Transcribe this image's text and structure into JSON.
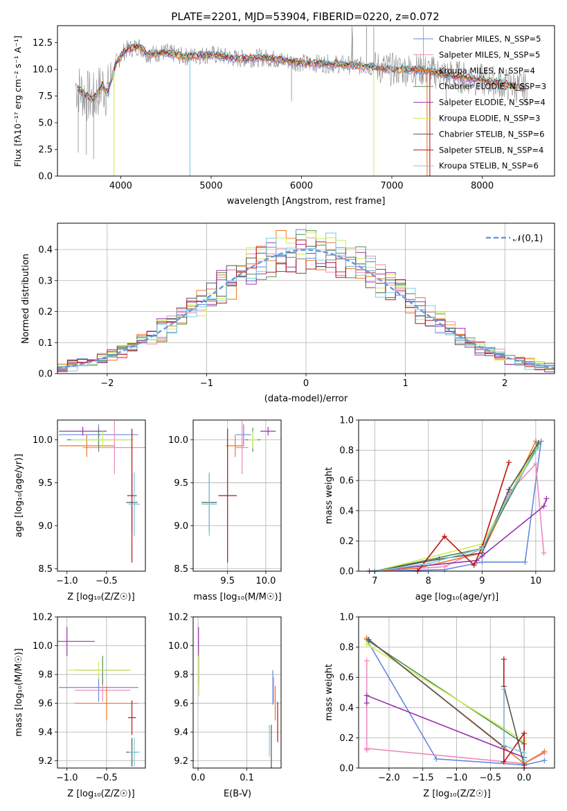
{
  "colors": {
    "chab_miles": "#6688dd",
    "salp_miles": "#ee88bb",
    "krou_miles": "#ee7722",
    "chab_elodie": "#558855",
    "salp_elodie": "#9933aa",
    "krou_elodie": "#ccee55",
    "chab_stelib": "#555555",
    "salp_stelib": "#bb1111",
    "krou_stelib": "#77ccdd",
    "data": "#888888",
    "normal": "#6699dd"
  },
  "chart_data": [
    {
      "type": "line",
      "title": "PLATE=2201, MJD=53904, FIBERID=0220, z=0.072",
      "xlabel": "wavelength [Angstrom, rest frame]",
      "ylabel": "Flux [fλ10⁻¹⁷ erg cm⁻² s⁻¹ A⁻¹]",
      "xlim": [
        3300,
        8800
      ],
      "ylim": [
        0,
        14.1
      ],
      "xticks": [
        4000,
        5000,
        6000,
        7000,
        8000
      ],
      "yticks": [
        0.0,
        2.5,
        5.0,
        7.5,
        10.0,
        12.5
      ],
      "grid": false,
      "legend_position": "top-right",
      "legend": [
        "Chabrier MILES, N_SSP=5",
        "Salpeter MILES, N_SSP=5",
        "Kroupa MILES, N_SSP=4",
        "Chabrier ELODIE, N_SSP=3",
        "Salpeter ELODIE, N_SSP=4",
        "Kroupa ELODIE, N_SSP=3",
        "Chabrier STELIB, N_SSP=6",
        "Salpeter STELIB, N_SSP=4",
        "Kroupa STELIB, N_SSP=6"
      ],
      "continuum": {
        "x": [
          3500,
          3600,
          3700,
          3800,
          3850,
          3950,
          4050,
          4200,
          4300,
          4500,
          4700,
          5000,
          5300,
          5600,
          6000,
          6400,
          6700,
          7000,
          7300,
          7600,
          7900,
          8200,
          8500
        ],
        "y": [
          8.5,
          7.6,
          7.2,
          8.5,
          7.8,
          10.6,
          11.8,
          12.2,
          11.4,
          11.6,
          11.2,
          11.4,
          11.0,
          11.1,
          10.6,
          10.5,
          10.3,
          10.0,
          10.0,
          9.5,
          9.1,
          8.7,
          8.2
        ]
      }
    },
    {
      "type": "histogram",
      "xlabel": "(data-model)/error",
      "ylabel": "Normed distribution",
      "xlim": [
        -2.5,
        2.5
      ],
      "ylim": [
        0,
        0.485
      ],
      "xticks": [
        -2,
        -1,
        0,
        1,
        2
      ],
      "yticks": [
        0.0,
        0.1,
        0.2,
        0.3,
        0.4
      ],
      "grid": true,
      "legend_position": "top-right",
      "legend": [
        "𝒩(0,1)"
      ],
      "bin_width": 0.1
    },
    {
      "type": "scatter",
      "xlabel": "Z [log₁₀(Z/Z☉)]",
      "ylabel": "age  [log₁₀(age/yr)]",
      "xlim": [
        -1.12,
        -0.01
      ],
      "ylim": [
        8.47,
        10.23
      ],
      "xticks": [
        -1.0,
        -0.5
      ],
      "yticks": [
        8.5,
        9.0,
        9.5,
        10.0
      ],
      "points": [
        {
          "c": "chab_miles",
          "x": -0.6,
          "xerr": 0.5,
          "y": 10.06,
          "yerr": 0.12
        },
        {
          "c": "salp_miles",
          "x": -0.4,
          "xerr": 0.4,
          "y": 9.91,
          "yerr": 0.31
        },
        {
          "c": "krou_miles",
          "x": -0.75,
          "xerr": 0.35,
          "y": 9.93,
          "yerr": 0.13
        },
        {
          "c": "chab_elodie",
          "x": -0.6,
          "xerr": 0.4,
          "y": 10.0,
          "yerr": 0.14
        },
        {
          "c": "salp_elodie",
          "x": -0.8,
          "xerr": 0.3,
          "y": 10.1,
          "yerr": 0.05
        },
        {
          "c": "krou_elodie",
          "x": -0.55,
          "xerr": 0.4,
          "y": 10.0,
          "yerr": 0.1
        },
        {
          "c": "chab_stelib",
          "x": -0.18,
          "xerr": 0.07,
          "y": 9.27,
          "yerr": 0.34
        },
        {
          "c": "salp_stelib",
          "x": -0.18,
          "xerr": 0.06,
          "y": 9.35,
          "yerr": 0.78
        },
        {
          "c": "krou_stelib",
          "x": -0.15,
          "xerr": 0.07,
          "y": 9.25,
          "yerr": 0.37
        }
      ]
    },
    {
      "type": "scatter",
      "xlabel": "mass [log₁₀(M/M☉)]",
      "ylabel": "",
      "xlim": [
        9.05,
        10.2
      ],
      "ylim": [
        8.47,
        10.23
      ],
      "xticks": [
        9.5,
        10.0
      ],
      "yticks": [
        8.5,
        9.0,
        9.5,
        10.0
      ],
      "points": [
        {
          "c": "chab_miles",
          "x": 9.71,
          "xerr": 0.1,
          "y": 10.06,
          "yerr": 0.12
        },
        {
          "c": "salp_miles",
          "x": 9.69,
          "xerr": 0.08,
          "y": 9.91,
          "yerr": 0.31
        },
        {
          "c": "krou_miles",
          "x": 9.6,
          "xerr": 0.12,
          "y": 9.93,
          "yerr": 0.13
        },
        {
          "c": "chab_elodie",
          "x": 9.83,
          "xerr": 0.1,
          "y": 10.0,
          "yerr": 0.14
        },
        {
          "c": "salp_elodie",
          "x": 10.03,
          "xerr": 0.1,
          "y": 10.1,
          "yerr": 0.05
        },
        {
          "c": "krou_elodie",
          "x": 9.83,
          "xerr": 0.06,
          "y": 10.0,
          "yerr": 0.1
        },
        {
          "c": "chab_stelib",
          "x": 9.26,
          "xerr": 0.1,
          "y": 9.27,
          "yerr": 0.34
        },
        {
          "c": "salp_stelib",
          "x": 9.5,
          "xerr": 0.12,
          "y": 9.35,
          "yerr": 0.78
        },
        {
          "c": "krou_stelib",
          "x": 9.26,
          "xerr": 0.1,
          "y": 9.25,
          "yerr": 0.37
        }
      ]
    },
    {
      "type": "line",
      "xlabel": "age  [log₁₀(age/yr)]",
      "ylabel": "mass weight",
      "xlim": [
        6.7,
        10.35
      ],
      "ylim": [
        0,
        1.0
      ],
      "xticks": [
        7,
        8,
        9,
        10
      ],
      "yticks": [
        0.0,
        0.2,
        0.4,
        0.6,
        0.8,
        1.0
      ],
      "grid": true,
      "series": [
        {
          "c": "chab_miles",
          "x": [
            7.0,
            8.3,
            9.0,
            9.8,
            10.1
          ],
          "y": [
            0.0,
            0.01,
            0.06,
            0.06,
            0.86
          ]
        },
        {
          "c": "salp_miles",
          "x": [
            7.0,
            8.3,
            9.0,
            9.5,
            10.0,
            10.15
          ],
          "y": [
            0.0,
            0.03,
            0.15,
            0.52,
            0.71,
            0.12
          ]
        },
        {
          "c": "krou_miles",
          "x": [
            6.9,
            7.8,
            9.0,
            10.0
          ],
          "y": [
            0.0,
            0.02,
            0.12,
            0.86
          ]
        },
        {
          "c": "chab_elodie",
          "x": [
            7.0,
            9.0,
            10.05
          ],
          "y": [
            0.0,
            0.15,
            0.84
          ]
        },
        {
          "c": "salp_elodie",
          "x": [
            6.9,
            8.9,
            9.0,
            10.15,
            10.2
          ],
          "y": [
            0.0,
            0.07,
            0.1,
            0.43,
            0.48
          ]
        },
        {
          "c": "krou_elodie",
          "x": [
            7.0,
            9.0,
            10.0
          ],
          "y": [
            0.0,
            0.18,
            0.82
          ]
        },
        {
          "c": "chab_stelib",
          "x": [
            7.0,
            8.2,
            9.0,
            9.5,
            10.05
          ],
          "y": [
            0.0,
            0.08,
            0.12,
            0.54,
            0.85
          ]
        },
        {
          "c": "salp_stelib",
          "x": [
            7.8,
            8.3,
            8.85,
            9.0,
            9.5
          ],
          "y": [
            0.0,
            0.23,
            0.04,
            0.16,
            0.72
          ]
        },
        {
          "c": "krou_stelib",
          "x": [
            7.0,
            8.0,
            9.0,
            9.5,
            10.05
          ],
          "y": [
            0.0,
            0.05,
            0.15,
            0.5,
            0.82
          ]
        }
      ]
    },
    {
      "type": "scatter",
      "xlabel": "Z [log₁₀(Z/Z☉)]",
      "ylabel": "mass [log₁₀(M/M☉)]",
      "xlim": [
        -1.12,
        -0.01
      ],
      "ylim": [
        9.15,
        10.2
      ],
      "xticks": [
        -1.0,
        -0.5
      ],
      "yticks": [
        9.2,
        9.4,
        9.6,
        9.8,
        10.0,
        10.2
      ],
      "points": [
        {
          "c": "chab_miles",
          "x": -0.6,
          "xerr": 0.5,
          "y": 9.71,
          "yerr": 0.1
        },
        {
          "c": "salp_miles",
          "x": -0.55,
          "xerr": 0.35,
          "y": 9.69,
          "yerr": 0.08
        },
        {
          "c": "krou_miles",
          "x": -0.5,
          "xerr": 0.4,
          "y": 9.6,
          "yerr": 0.12
        },
        {
          "c": "chab_elodie",
          "x": -0.55,
          "xerr": 0.35,
          "y": 9.83,
          "yerr": 0.1
        },
        {
          "c": "salp_elodie",
          "x": -1.0,
          "xerr": 0.35,
          "y": 10.03,
          "yerr": 0.1
        },
        {
          "c": "krou_elodie",
          "x": -0.6,
          "xerr": 0.4,
          "y": 9.83,
          "yerr": 0.06
        },
        {
          "c": "chab_stelib",
          "x": -0.18,
          "xerr": 0.07,
          "y": 9.26,
          "yerr": 0.1
        },
        {
          "c": "salp_stelib",
          "x": -0.18,
          "xerr": 0.05,
          "y": 9.5,
          "yerr": 0.12
        },
        {
          "c": "krou_stelib",
          "x": -0.15,
          "xerr": 0.07,
          "y": 9.26,
          "yerr": 0.1
        }
      ]
    },
    {
      "type": "scatter",
      "xlabel": "E(B-V)",
      "ylabel": "",
      "xlim": [
        -0.01,
        0.17
      ],
      "ylim": [
        9.15,
        10.2
      ],
      "xticks": [
        0.0,
        0.1
      ],
      "yticks": [
        9.2,
        9.4,
        9.6,
        9.8,
        10.0,
        10.2
      ],
      "points": [
        {
          "c": "chab_miles",
          "x": 0.153,
          "xerr": 0,
          "y": 9.71,
          "yerr": 0.12
        },
        {
          "c": "salp_miles",
          "x": 0.155,
          "xerr": 0,
          "y": 9.69,
          "yerr": 0.09
        },
        {
          "c": "krou_miles",
          "x": 0.158,
          "xerr": 0,
          "y": 9.6,
          "yerr": 0.12
        },
        {
          "c": "chab_elodie",
          "x": 0.002,
          "xerr": 0,
          "y": 9.83,
          "yerr": 0.1
        },
        {
          "c": "salp_elodie",
          "x": 0.001,
          "xerr": 0,
          "y": 10.03,
          "yerr": 0.1
        },
        {
          "c": "krou_elodie",
          "x": 0.002,
          "xerr": 0,
          "y": 9.8,
          "yerr": 0.15
        },
        {
          "c": "chab_stelib",
          "x": 0.15,
          "xerr": 0,
          "y": 9.3,
          "yerr": 0.15
        },
        {
          "c": "salp_stelib",
          "x": 0.163,
          "xerr": 0,
          "y": 9.47,
          "yerr": 0.14
        },
        {
          "c": "krou_stelib",
          "x": 0.146,
          "xerr": 0,
          "y": 9.34,
          "yerr": 0.11
        }
      ]
    },
    {
      "type": "line",
      "xlabel": "Z [log₁₀(Z/Z☉)]",
      "ylabel": "mass weight",
      "xlim": [
        -2.45,
        0.45
      ],
      "ylim": [
        0,
        1.0
      ],
      "xticks": [
        -2.0,
        -1.5,
        -1.0,
        -0.5,
        0.0
      ],
      "yticks": [
        0.0,
        0.2,
        0.4,
        0.6,
        0.8,
        1.0
      ],
      "grid": true,
      "series": [
        {
          "c": "chab_miles",
          "x": [
            -2.33,
            -1.3,
            0.0,
            0.3
          ],
          "y": [
            0.85,
            0.06,
            0.02,
            0.05
          ]
        },
        {
          "c": "salp_miles",
          "x": [
            -2.33,
            -2.33,
            -2.33,
            0.0,
            0.3
          ],
          "y": [
            0.71,
            0.12,
            0.13,
            0.03,
            0.1
          ]
        },
        {
          "c": "krou_miles",
          "x": [
            -2.33,
            0.0,
            0.3
          ],
          "y": [
            0.86,
            0.03,
            0.11
          ]
        },
        {
          "c": "chab_elodie",
          "x": [
            -2.3,
            0.0,
            0.0
          ],
          "y": [
            0.84,
            0.16,
            0.02
          ]
        },
        {
          "c": "salp_elodie",
          "x": [
            -2.33,
            -2.33,
            0.0,
            0.0
          ],
          "y": [
            0.43,
            0.48,
            0.07,
            0.02
          ]
        },
        {
          "c": "krou_elodie",
          "x": [
            -2.33,
            0.0
          ],
          "y": [
            0.82,
            0.18
          ]
        },
        {
          "c": "chab_stelib",
          "x": [
            -2.3,
            -0.3,
            -0.3,
            0.0
          ],
          "y": [
            0.85,
            0.14,
            0.54,
            0.02
          ]
        },
        {
          "c": "salp_stelib",
          "x": [
            -0.3,
            -0.3,
            0.0,
            0.0
          ],
          "y": [
            0.72,
            0.04,
            0.23,
            0.0
          ]
        },
        {
          "c": "krou_stelib",
          "x": [
            -0.3,
            -0.3,
            0.0,
            0.0
          ],
          "y": [
            0.52,
            0.15,
            0.1,
            0.05
          ]
        }
      ]
    }
  ]
}
